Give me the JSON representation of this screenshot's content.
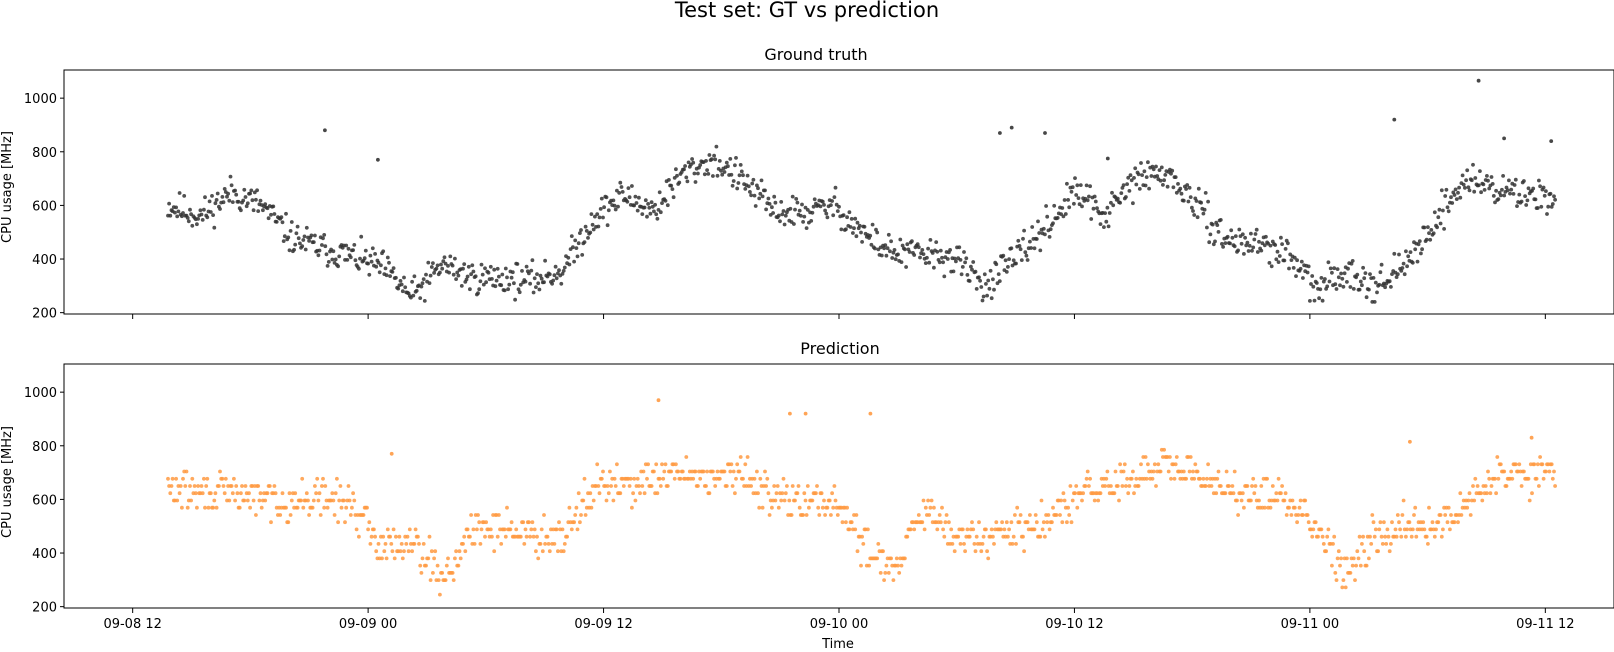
{
  "figure": {
    "suptitle": "Test set: GT vs prediction"
  },
  "chart_data": [
    {
      "type": "scatter",
      "title": "Ground truth",
      "xlabel": "",
      "ylabel": "CPU usage [MHz]",
      "x_ticks": [
        "09-08 12",
        "09-09 00",
        "09-09 12",
        "09-10 00",
        "09-10 12",
        "09-11 00",
        "09-11 12"
      ],
      "show_x_ticklabels": false,
      "y_ticks": [
        "200",
        "400",
        "600",
        "800",
        "1000"
      ],
      "xlim_hours": [
        -3.5,
        75.5
      ],
      "ylim": [
        195,
        1105
      ],
      "grid": false,
      "point_color": "#333333",
      "x_range_hours": [
        1.8,
        72.5
      ],
      "keypoints": [
        [
          1.8,
          600
        ],
        [
          4,
          560
        ],
        [
          6,
          650
        ],
        [
          8,
          600
        ],
        [
          10,
          480
        ],
        [
          12,
          440
        ],
        [
          14,
          410
        ],
        [
          16,
          370
        ],
        [
          18,
          260
        ],
        [
          20,
          380
        ],
        [
          22,
          330
        ],
        [
          24,
          330
        ],
        [
          26,
          320
        ],
        [
          28,
          360
        ],
        [
          30,
          550
        ],
        [
          32,
          640
        ],
        [
          34,
          580
        ],
        [
          36,
          720
        ],
        [
          38,
          770
        ],
        [
          40,
          690
        ],
        [
          42,
          580
        ],
        [
          44,
          570
        ],
        [
          46,
          600
        ],
        [
          48,
          490
        ],
        [
          50,
          420
        ],
        [
          52,
          420
        ],
        [
          54,
          400
        ],
        [
          56,
          300
        ],
        [
          58,
          400
        ],
        [
          60,
          520
        ],
        [
          62,
          650
        ],
        [
          64,
          560
        ],
        [
          66,
          700
        ],
        [
          68,
          720
        ],
        [
          70,
          600
        ],
        [
          72,
          470
        ],
        [
          74,
          460
        ],
        [
          76,
          420
        ],
        [
          78,
          280
        ],
        [
          80,
          360
        ],
        [
          82,
          300
        ],
        [
          84,
          380
        ],
        [
          86,
          560
        ],
        [
          88,
          700
        ],
        [
          90,
          660
        ],
        [
          92,
          640
        ]
      ],
      "outliers": [
        [
          9.8,
          880
        ],
        [
          12.5,
          770
        ],
        [
          44.2,
          870
        ],
        [
          44.8,
          890
        ],
        [
          46.5,
          870
        ],
        [
          49.7,
          775
        ],
        [
          64.3,
          920
        ],
        [
          68.6,
          1065
        ],
        [
          69.9,
          850
        ],
        [
          72.3,
          840
        ]
      ]
    },
    {
      "type": "scatter",
      "title": "Prediction",
      "xlabel": "Time",
      "ylabel": "CPU usage [MHz]",
      "x_ticks": [
        "09-08 12",
        "09-09 00",
        "09-09 12",
        "09-10 00",
        "09-10 12",
        "09-11 00",
        "09-11 12"
      ],
      "show_x_ticklabels": true,
      "y_ticks": [
        "200",
        "400",
        "600",
        "800",
        "1000"
      ],
      "xlim_hours": [
        -3.5,
        75.5
      ],
      "ylim": [
        195,
        1105
      ],
      "grid": false,
      "point_color": "#ff9a42",
      "x_range_hours": [
        1.8,
        72.5
      ],
      "keypoints": [
        [
          1.8,
          640
        ],
        [
          4,
          620
        ],
        [
          6,
          620
        ],
        [
          8,
          600
        ],
        [
          10,
          590
        ],
        [
          12,
          600
        ],
        [
          14,
          580
        ],
        [
          16,
          420
        ],
        [
          18,
          460
        ],
        [
          20,
          300
        ],
        [
          22,
          480
        ],
        [
          24,
          500
        ],
        [
          26,
          460
        ],
        [
          28,
          470
        ],
        [
          30,
          640
        ],
        [
          32,
          650
        ],
        [
          34,
          660
        ],
        [
          36,
          700
        ],
        [
          38,
          680
        ],
        [
          40,
          680
        ],
        [
          42,
          620
        ],
        [
          44,
          580
        ],
        [
          46,
          600
        ],
        [
          48,
          420
        ],
        [
          50,
          340
        ],
        [
          52,
          560
        ],
        [
          54,
          450
        ],
        [
          56,
          460
        ],
        [
          58,
          480
        ],
        [
          60,
          500
        ],
        [
          62,
          600
        ],
        [
          64,
          650
        ],
        [
          66,
          680
        ],
        [
          68,
          720
        ],
        [
          70,
          680
        ],
        [
          72,
          650
        ],
        [
          74,
          600
        ],
        [
          76,
          600
        ],
        [
          78,
          500
        ],
        [
          80,
          330
        ],
        [
          82,
          480
        ],
        [
          84,
          500
        ],
        [
          86,
          480
        ],
        [
          88,
          600
        ],
        [
          90,
          680
        ],
        [
          92,
          700
        ]
      ],
      "outliers": [
        [
          26.8,
          970
        ],
        [
          33.5,
          920
        ],
        [
          34.3,
          920
        ],
        [
          37.6,
          920
        ],
        [
          13.2,
          770
        ],
        [
          65.1,
          815
        ],
        [
          71.3,
          830
        ]
      ]
    }
  ]
}
